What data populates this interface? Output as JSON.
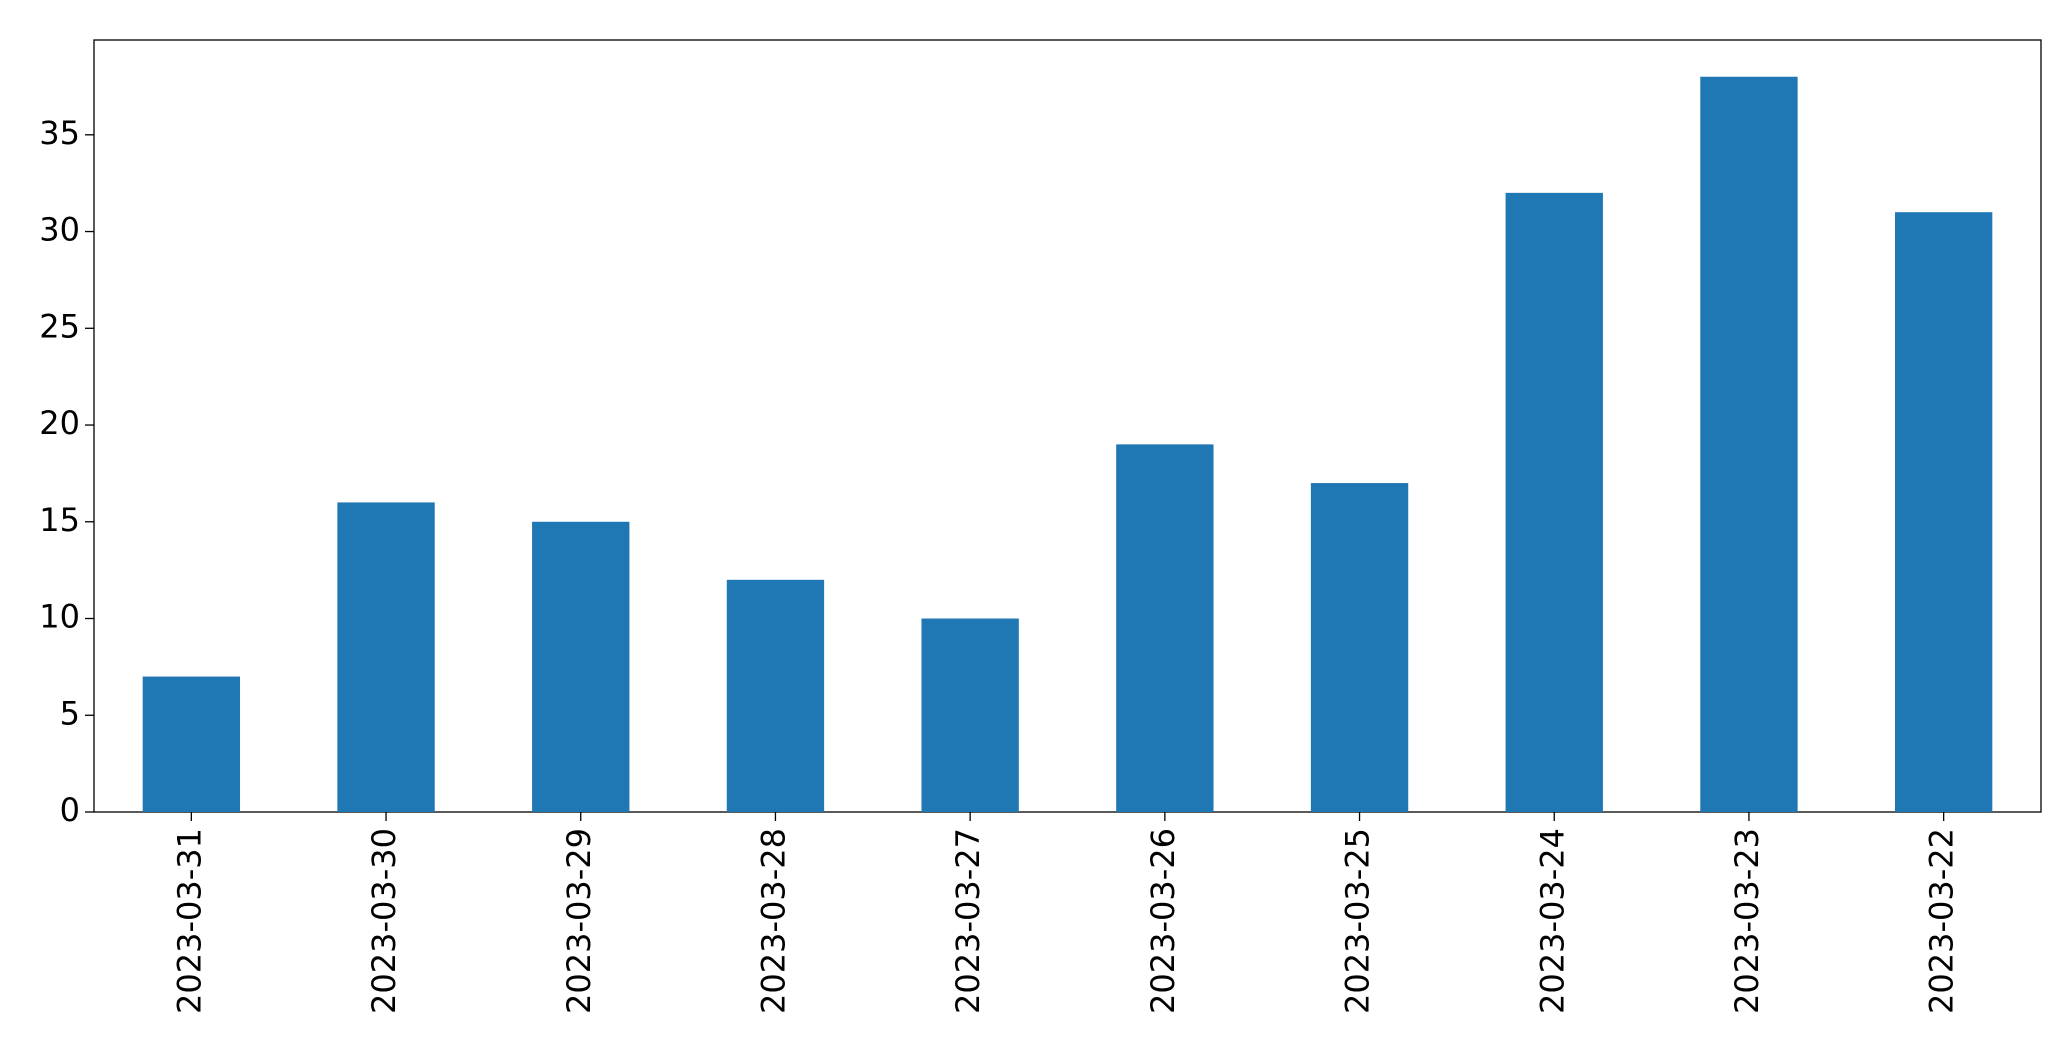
{
  "chart_data": {
    "type": "bar",
    "categories": [
      "2023-03-31",
      "2023-03-30",
      "2023-03-29",
      "2023-03-28",
      "2023-03-27",
      "2023-03-26",
      "2023-03-25",
      "2023-03-24",
      "2023-03-23",
      "2023-03-22"
    ],
    "values": [
      7,
      16,
      15,
      12,
      10,
      19,
      17,
      32,
      38,
      31
    ],
    "color": "#1f77b4",
    "ylim": [
      0,
      39.9
    ],
    "yticks": [
      0,
      5,
      10,
      15,
      20,
      25,
      30,
      35
    ],
    "grid": false
  }
}
